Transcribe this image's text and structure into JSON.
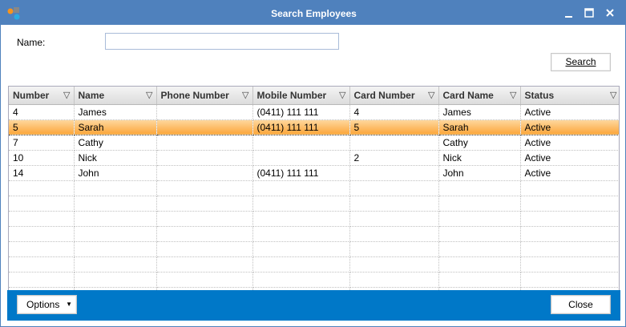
{
  "window": {
    "title": "Search Employees",
    "minimize_icon": "minimize-icon",
    "maximize_icon": "maximize-icon",
    "close_icon": "close-icon"
  },
  "form": {
    "name_label": "Name:",
    "name_value": "",
    "search_label": "Search"
  },
  "grid": {
    "columns": [
      "Number",
      "Name",
      "Phone Number",
      "Mobile Number",
      "Card Number",
      "Card Name",
      "Status"
    ],
    "rows": [
      [
        "4",
        "James",
        "",
        "(0411) 111 111",
        "4",
        "James",
        "Active"
      ],
      [
        "5",
        "Sarah",
        "",
        "(0411) 111 111",
        "5",
        "Sarah",
        "Active"
      ],
      [
        "7",
        "Cathy",
        "",
        "",
        "",
        "Cathy",
        "Active"
      ],
      [
        "10",
        "Nick",
        "",
        "",
        "2",
        "Nick",
        "Active"
      ],
      [
        "14",
        "John",
        "",
        "(0411) 111 111",
        "",
        "John",
        "Active"
      ]
    ],
    "selected_row": 1
  },
  "footer": {
    "options_label": "Options",
    "close_label": "Close"
  },
  "colors": {
    "titlebar": "#4f81bd",
    "footer": "#0078c8",
    "selection": "#fca63a"
  }
}
